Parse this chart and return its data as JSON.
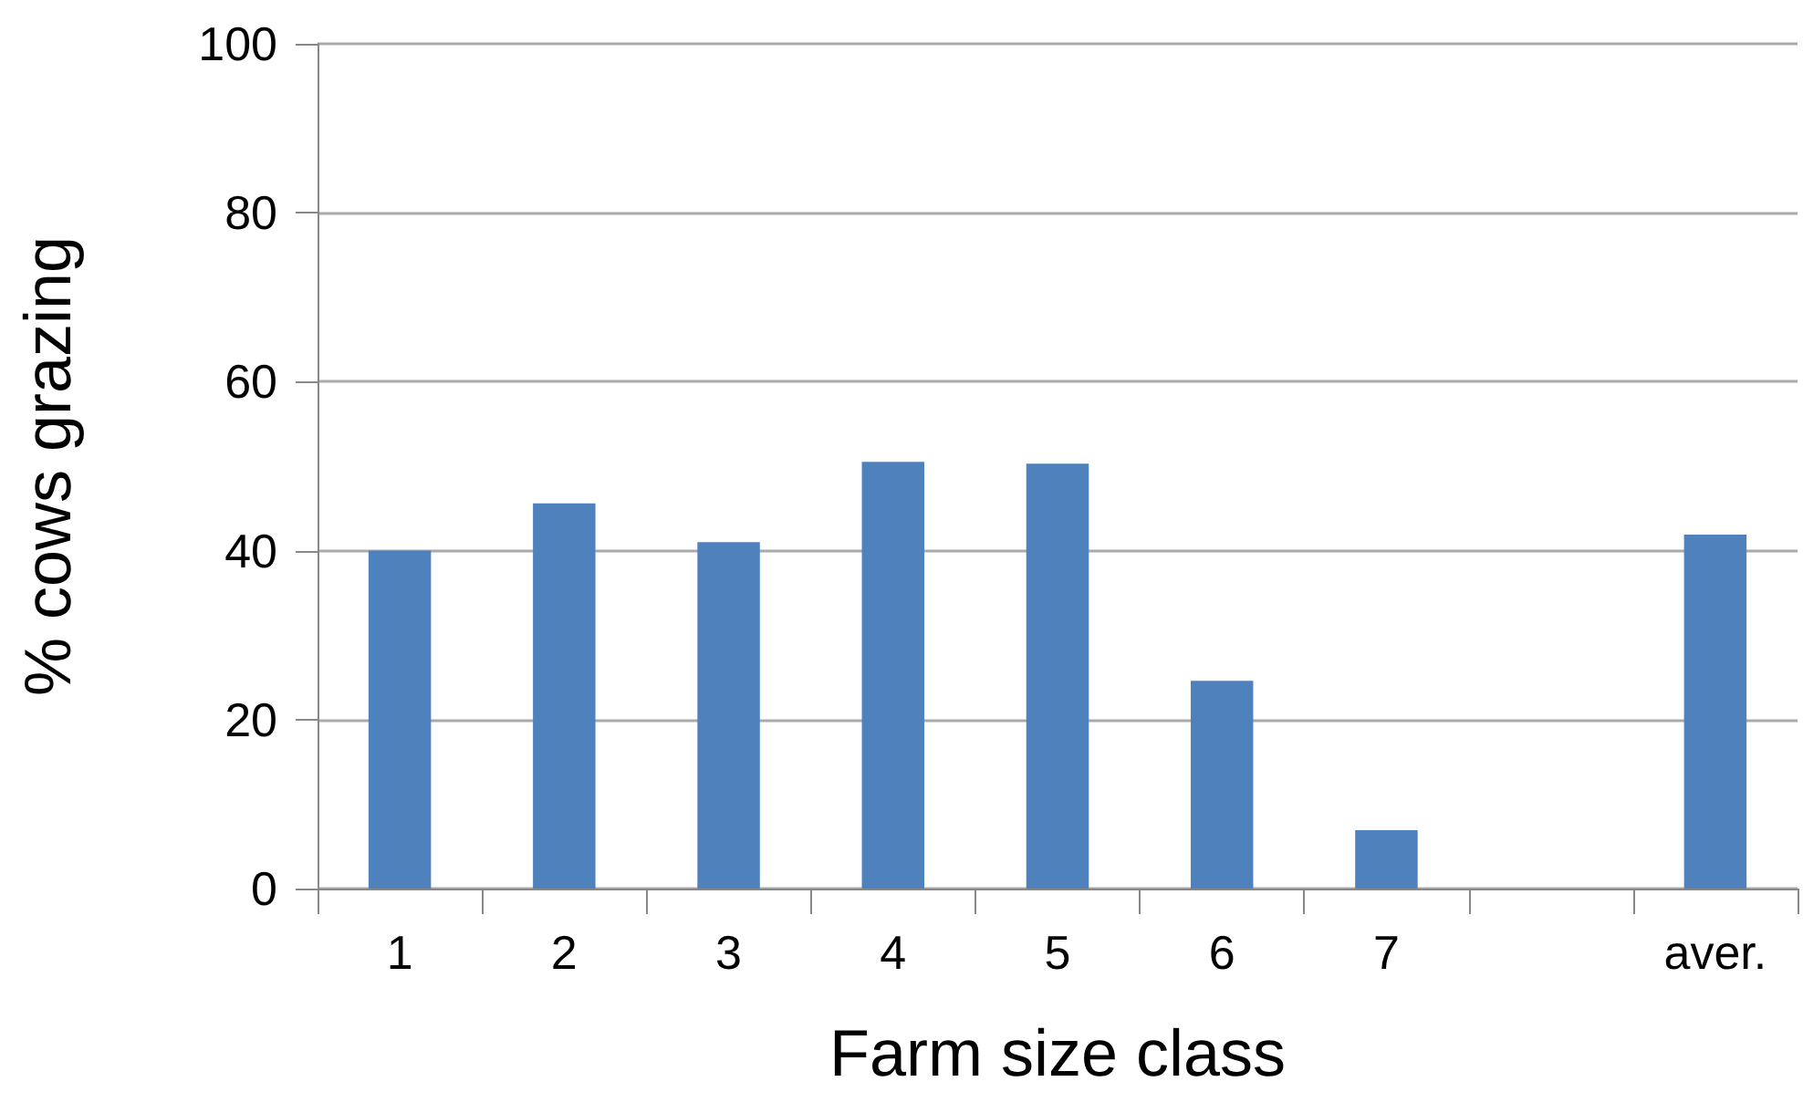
{
  "chart_data": {
    "type": "bar",
    "xlabel": "Farm size class",
    "ylabel": "% cows grazing",
    "categories": [
      "1",
      "2",
      "3",
      "4",
      "5",
      "6",
      "7",
      null,
      "aver."
    ],
    "values": [
      40,
      45.6,
      41,
      50.5,
      50.3,
      24.6,
      6.9,
      null,
      41.9
    ],
    "color": "#4f81bd",
    "ylim": [
      0,
      100
    ],
    "yticks": [
      0,
      20,
      40,
      60,
      80,
      100
    ],
    "grid": "y"
  }
}
